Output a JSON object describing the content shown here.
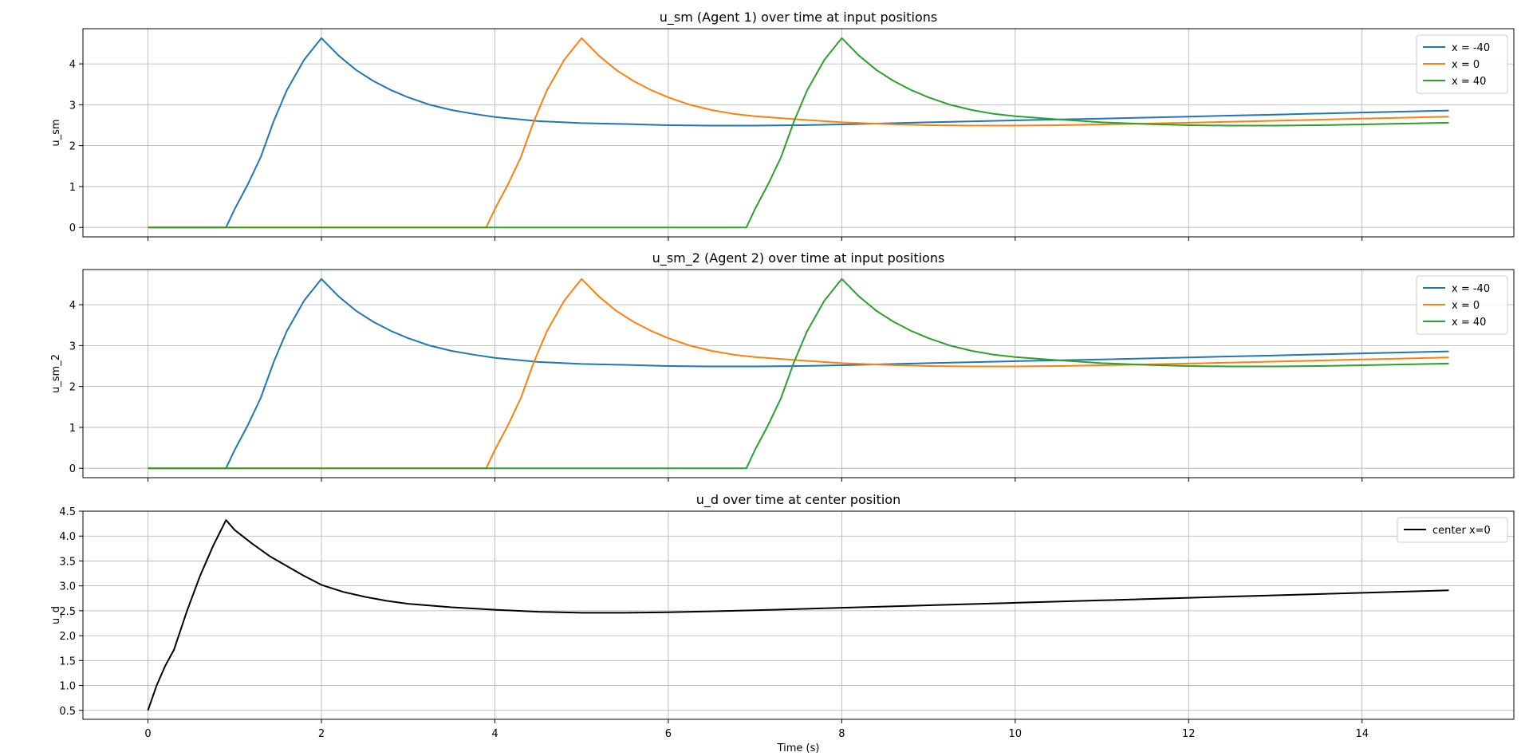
{
  "chart_data": [
    {
      "type": "line",
      "title": "u_sm (Agent 1) over time at input positions",
      "xlabel": "",
      "ylabel": "u_sm",
      "xlim": [
        -0.75,
        15.75
      ],
      "ylim": [
        -0.23,
        4.86
      ],
      "xticks": [
        0,
        2,
        4,
        6,
        8,
        10,
        12,
        14
      ],
      "yticks": [
        0,
        1,
        2,
        3,
        4
      ],
      "show_xticklabels": false,
      "grid": true,
      "legend_position": "top-right",
      "series": [
        {
          "name": "x = -40",
          "color": "#1f77b4",
          "points": [
            [
              0,
              0
            ],
            [
              0.9,
              0
            ],
            [
              1.0,
              0.45
            ],
            [
              1.15,
              1.05
            ],
            [
              1.3,
              1.72
            ],
            [
              1.45,
              2.6
            ],
            [
              1.6,
              3.35
            ],
            [
              1.8,
              4.1
            ],
            [
              2.0,
              4.63
            ],
            [
              2.2,
              4.2
            ],
            [
              2.4,
              3.85
            ],
            [
              2.6,
              3.58
            ],
            [
              2.8,
              3.36
            ],
            [
              3.0,
              3.18
            ],
            [
              3.25,
              3.0
            ],
            [
              3.5,
              2.87
            ],
            [
              3.75,
              2.78
            ],
            [
              4.0,
              2.7
            ],
            [
              4.5,
              2.6
            ],
            [
              5.0,
              2.55
            ],
            [
              5.5,
              2.53
            ],
            [
              6.0,
              2.5
            ],
            [
              6.5,
              2.49
            ],
            [
              7.0,
              2.49
            ],
            [
              7.5,
              2.5
            ],
            [
              8.0,
              2.52
            ],
            [
              9.0,
              2.57
            ],
            [
              10.0,
              2.62
            ],
            [
              11.0,
              2.66
            ],
            [
              12.0,
              2.71
            ],
            [
              13.0,
              2.76
            ],
            [
              14.0,
              2.81
            ],
            [
              15.0,
              2.86
            ]
          ]
        },
        {
          "name": "x = 0",
          "color": "#ff7f0e",
          "points": [
            [
              0,
              0
            ],
            [
              3.9,
              0
            ],
            [
              4.0,
              0.45
            ],
            [
              4.15,
              1.05
            ],
            [
              4.3,
              1.72
            ],
            [
              4.45,
              2.6
            ],
            [
              4.6,
              3.35
            ],
            [
              4.8,
              4.1
            ],
            [
              5.0,
              4.63
            ],
            [
              5.2,
              4.2
            ],
            [
              5.4,
              3.85
            ],
            [
              5.6,
              3.58
            ],
            [
              5.8,
              3.36
            ],
            [
              6.0,
              3.18
            ],
            [
              6.25,
              3.0
            ],
            [
              6.5,
              2.87
            ],
            [
              6.75,
              2.78
            ],
            [
              7.0,
              2.72
            ],
            [
              7.5,
              2.64
            ],
            [
              8.0,
              2.57
            ],
            [
              8.5,
              2.53
            ],
            [
              9.0,
              2.5
            ],
            [
              9.5,
              2.49
            ],
            [
              10.0,
              2.49
            ],
            [
              10.5,
              2.5
            ],
            [
              11.0,
              2.52
            ],
            [
              12.0,
              2.56
            ],
            [
              13.0,
              2.61
            ],
            [
              14.0,
              2.66
            ],
            [
              15.0,
              2.71
            ]
          ]
        },
        {
          "name": "x = 40",
          "color": "#2ca02c",
          "points": [
            [
              0,
              0
            ],
            [
              6.9,
              0
            ],
            [
              7.0,
              0.45
            ],
            [
              7.15,
              1.05
            ],
            [
              7.3,
              1.72
            ],
            [
              7.45,
              2.6
            ],
            [
              7.6,
              3.35
            ],
            [
              7.8,
              4.1
            ],
            [
              8.0,
              4.63
            ],
            [
              8.2,
              4.2
            ],
            [
              8.4,
              3.85
            ],
            [
              8.6,
              3.58
            ],
            [
              8.8,
              3.36
            ],
            [
              9.0,
              3.18
            ],
            [
              9.25,
              3.0
            ],
            [
              9.5,
              2.87
            ],
            [
              9.75,
              2.78
            ],
            [
              10.0,
              2.72
            ],
            [
              10.5,
              2.64
            ],
            [
              11.0,
              2.57
            ],
            [
              11.5,
              2.53
            ],
            [
              12.0,
              2.5
            ],
            [
              12.5,
              2.49
            ],
            [
              13.0,
              2.49
            ],
            [
              13.5,
              2.5
            ],
            [
              14.0,
              2.52
            ],
            [
              15.0,
              2.56
            ]
          ]
        }
      ]
    },
    {
      "type": "line",
      "title": "u_sm_2 (Agent 2) over time at input positions",
      "xlabel": "",
      "ylabel": "u_sm_2",
      "xlim": [
        -0.75,
        15.75
      ],
      "ylim": [
        -0.23,
        4.86
      ],
      "xticks": [
        0,
        2,
        4,
        6,
        8,
        10,
        12,
        14
      ],
      "yticks": [
        0,
        1,
        2,
        3,
        4
      ],
      "show_xticklabels": false,
      "grid": true,
      "legend_position": "top-right",
      "series": [
        {
          "name": "x = -40",
          "color": "#1f77b4",
          "points": [
            [
              0,
              0
            ],
            [
              0.9,
              0
            ],
            [
              1.0,
              0.45
            ],
            [
              1.15,
              1.05
            ],
            [
              1.3,
              1.72
            ],
            [
              1.45,
              2.6
            ],
            [
              1.6,
              3.35
            ],
            [
              1.8,
              4.1
            ],
            [
              2.0,
              4.63
            ],
            [
              2.2,
              4.2
            ],
            [
              2.4,
              3.85
            ],
            [
              2.6,
              3.58
            ],
            [
              2.8,
              3.36
            ],
            [
              3.0,
              3.18
            ],
            [
              3.25,
              3.0
            ],
            [
              3.5,
              2.87
            ],
            [
              3.75,
              2.78
            ],
            [
              4.0,
              2.7
            ],
            [
              4.5,
              2.6
            ],
            [
              5.0,
              2.55
            ],
            [
              5.5,
              2.53
            ],
            [
              6.0,
              2.5
            ],
            [
              6.5,
              2.49
            ],
            [
              7.0,
              2.49
            ],
            [
              7.5,
              2.5
            ],
            [
              8.0,
              2.52
            ],
            [
              9.0,
              2.57
            ],
            [
              10.0,
              2.62
            ],
            [
              11.0,
              2.66
            ],
            [
              12.0,
              2.71
            ],
            [
              13.0,
              2.76
            ],
            [
              14.0,
              2.81
            ],
            [
              15.0,
              2.86
            ]
          ]
        },
        {
          "name": "x = 0",
          "color": "#ff7f0e",
          "points": [
            [
              0,
              0
            ],
            [
              3.9,
              0
            ],
            [
              4.0,
              0.45
            ],
            [
              4.15,
              1.05
            ],
            [
              4.3,
              1.72
            ],
            [
              4.45,
              2.6
            ],
            [
              4.6,
              3.35
            ],
            [
              4.8,
              4.1
            ],
            [
              5.0,
              4.63
            ],
            [
              5.2,
              4.2
            ],
            [
              5.4,
              3.85
            ],
            [
              5.6,
              3.58
            ],
            [
              5.8,
              3.36
            ],
            [
              6.0,
              3.18
            ],
            [
              6.25,
              3.0
            ],
            [
              6.5,
              2.87
            ],
            [
              6.75,
              2.78
            ],
            [
              7.0,
              2.72
            ],
            [
              7.5,
              2.64
            ],
            [
              8.0,
              2.57
            ],
            [
              8.5,
              2.53
            ],
            [
              9.0,
              2.5
            ],
            [
              9.5,
              2.49
            ],
            [
              10.0,
              2.49
            ],
            [
              10.5,
              2.5
            ],
            [
              11.0,
              2.52
            ],
            [
              12.0,
              2.56
            ],
            [
              13.0,
              2.61
            ],
            [
              14.0,
              2.66
            ],
            [
              15.0,
              2.71
            ]
          ]
        },
        {
          "name": "x = 40",
          "color": "#2ca02c",
          "points": [
            [
              0,
              0
            ],
            [
              6.9,
              0
            ],
            [
              7.0,
              0.45
            ],
            [
              7.15,
              1.05
            ],
            [
              7.3,
              1.72
            ],
            [
              7.45,
              2.6
            ],
            [
              7.6,
              3.35
            ],
            [
              7.8,
              4.1
            ],
            [
              8.0,
              4.63
            ],
            [
              8.2,
              4.2
            ],
            [
              8.4,
              3.85
            ],
            [
              8.6,
              3.58
            ],
            [
              8.8,
              3.36
            ],
            [
              9.0,
              3.18
            ],
            [
              9.25,
              3.0
            ],
            [
              9.5,
              2.87
            ],
            [
              9.75,
              2.78
            ],
            [
              10.0,
              2.72
            ],
            [
              10.5,
              2.64
            ],
            [
              11.0,
              2.57
            ],
            [
              11.5,
              2.53
            ],
            [
              12.0,
              2.5
            ],
            [
              12.5,
              2.49
            ],
            [
              13.0,
              2.49
            ],
            [
              13.5,
              2.5
            ],
            [
              14.0,
              2.52
            ],
            [
              15.0,
              2.56
            ]
          ]
        }
      ]
    },
    {
      "type": "line",
      "title": "u_d over time at center position",
      "xlabel": "Time (s)",
      "ylabel": "u_d",
      "xlim": [
        -0.75,
        15.75
      ],
      "ylim": [
        0.32,
        4.5
      ],
      "xticks": [
        0,
        2,
        4,
        6,
        8,
        10,
        12,
        14
      ],
      "yticks": [
        0.5,
        1.0,
        1.5,
        2.0,
        2.5,
        3.0,
        3.5,
        4.0,
        4.5
      ],
      "show_xticklabels": true,
      "grid": true,
      "legend_position": "top-right",
      "series": [
        {
          "name": "center x=0",
          "color": "#000000",
          "points": [
            [
              0,
              0.5
            ],
            [
              0.1,
              1.0
            ],
            [
              0.2,
              1.4
            ],
            [
              0.3,
              1.72
            ],
            [
              0.45,
              2.5
            ],
            [
              0.6,
              3.2
            ],
            [
              0.75,
              3.8
            ],
            [
              0.9,
              4.32
            ],
            [
              1.0,
              4.12
            ],
            [
              1.2,
              3.85
            ],
            [
              1.4,
              3.6
            ],
            [
              1.6,
              3.4
            ],
            [
              1.8,
              3.2
            ],
            [
              2.0,
              3.02
            ],
            [
              2.25,
              2.88
            ],
            [
              2.5,
              2.78
            ],
            [
              2.75,
              2.7
            ],
            [
              3.0,
              2.64
            ],
            [
              3.5,
              2.57
            ],
            [
              4.0,
              2.52
            ],
            [
              4.5,
              2.48
            ],
            [
              5.0,
              2.46
            ],
            [
              5.5,
              2.46
            ],
            [
              6.0,
              2.47
            ],
            [
              7.0,
              2.51
            ],
            [
              8.0,
              2.56
            ],
            [
              9.0,
              2.61
            ],
            [
              10.0,
              2.66
            ],
            [
              11.0,
              2.71
            ],
            [
              12.0,
              2.76
            ],
            [
              13.0,
              2.81
            ],
            [
              14.0,
              2.86
            ],
            [
              15.0,
              2.91
            ]
          ]
        }
      ]
    }
  ]
}
